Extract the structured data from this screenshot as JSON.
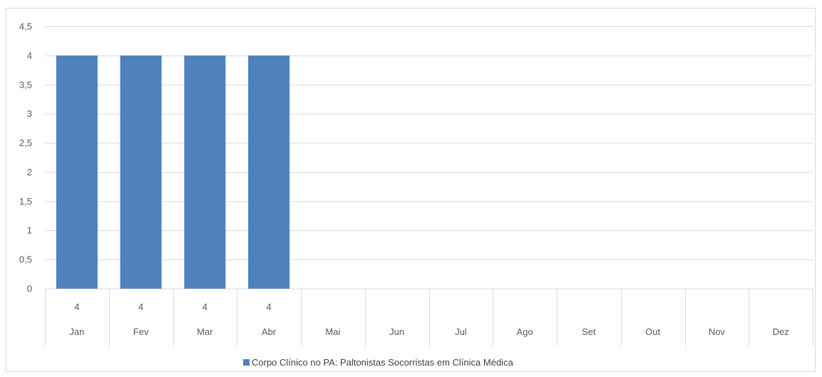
{
  "chart_data": {
    "type": "bar",
    "categories": [
      "Jan",
      "Fev",
      "Mar",
      "Abr",
      "Mai",
      "Jun",
      "Jul",
      "Ago",
      "Set",
      "Out",
      "Nov",
      "Dez"
    ],
    "series": [
      {
        "name": "Corpo Clínico no PA: Paltonistas Socorristas em Clínica Médica",
        "values": [
          4,
          4,
          4,
          4,
          null,
          null,
          null,
          null,
          null,
          null,
          null,
          null
        ],
        "value_labels": [
          "4",
          "4",
          "4",
          "4",
          "",
          "",
          "",
          "",
          "",
          "",
          "",
          ""
        ]
      }
    ],
    "ylim": [
      0,
      4.5
    ],
    "ytick_labels": [
      "0",
      "0,5",
      "1",
      "1,5",
      "2",
      "2,5",
      "3",
      "3,5",
      "4",
      "4,5"
    ],
    "ytick_values": [
      0,
      0.5,
      1,
      1.5,
      2,
      2.5,
      3,
      3.5,
      4,
      4.5
    ],
    "grid": true,
    "legend_position": "bottom",
    "data_table": true,
    "colors": {
      "bar": "#4f81bd",
      "grid": "#d9d9d9",
      "axis_text": "#595959"
    }
  }
}
